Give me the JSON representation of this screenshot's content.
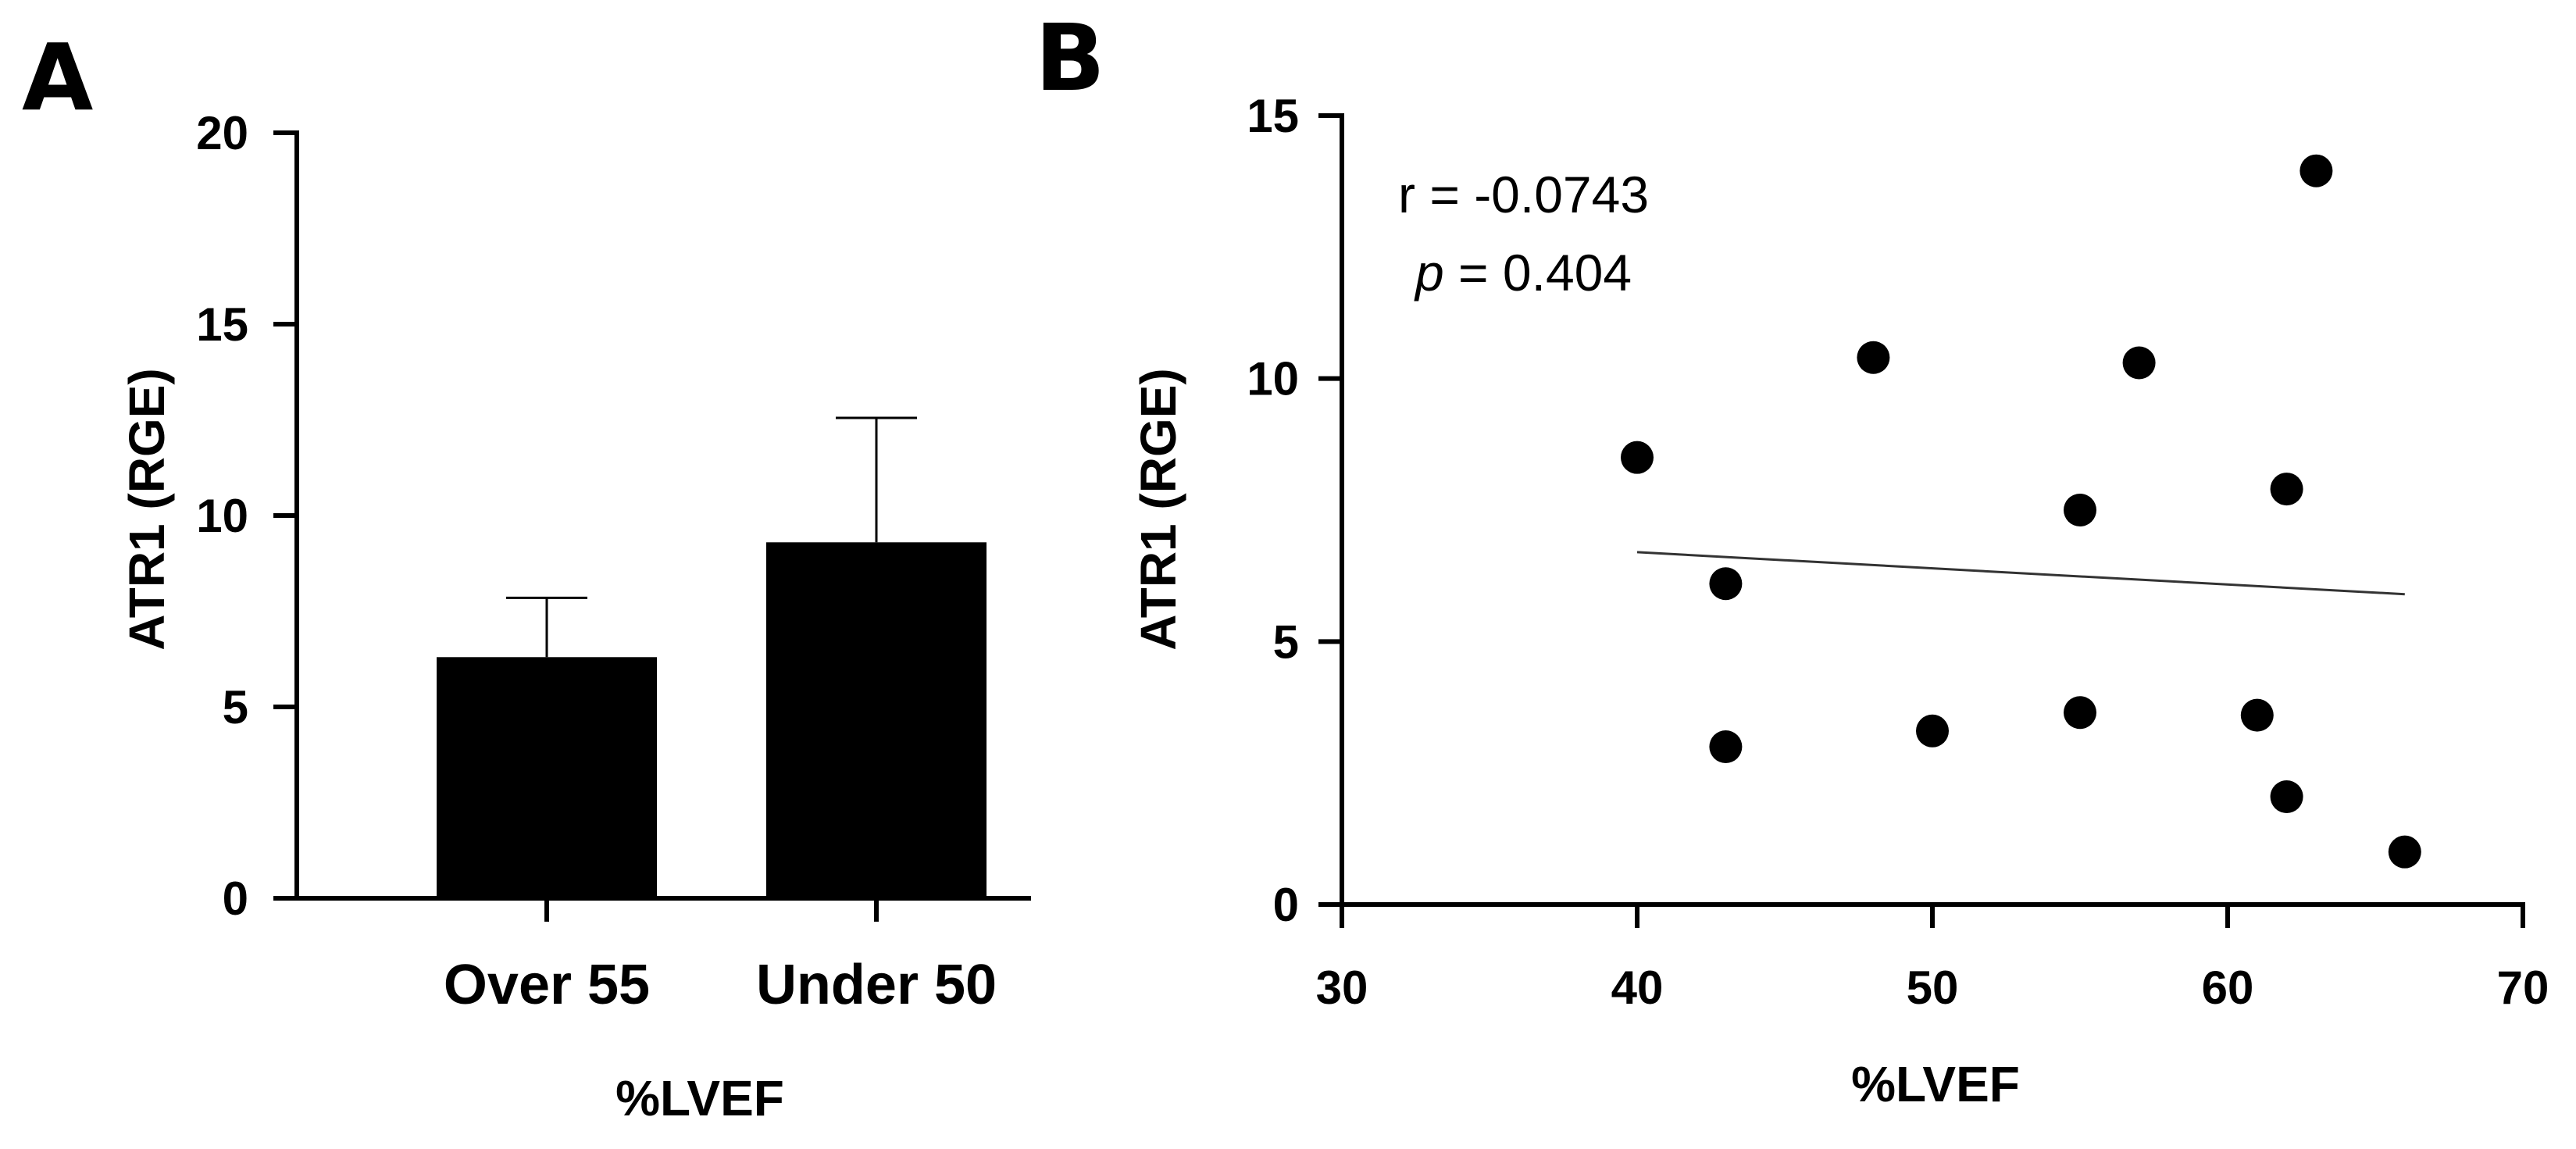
{
  "panels": {
    "a": "A",
    "b": "B"
  },
  "chart_data": [
    {
      "type": "bar",
      "panel": "A",
      "categories": [
        "Over 55",
        "Under 50"
      ],
      "values": [
        6.3,
        9.3
      ],
      "errors_upper": [
        1.55,
        3.25
      ],
      "ylabel": "ATR1 (RGE)",
      "xlabel": "%LVEF",
      "ylim": [
        0,
        20
      ],
      "yticks": [
        0,
        5,
        10,
        15,
        20
      ],
      "color": "#000000"
    },
    {
      "type": "scatter",
      "panel": "B",
      "x": [
        40,
        43,
        43,
        48,
        50,
        55,
        55,
        57,
        61,
        62,
        62,
        63,
        66
      ],
      "y": [
        8.5,
        6.1,
        3.0,
        10.4,
        3.3,
        7.5,
        3.65,
        10.3,
        3.6,
        7.9,
        2.05,
        13.95,
        1.0
      ],
      "fit_line": {
        "x": [
          40,
          66
        ],
        "y": [
          6.7,
          5.9
        ]
      },
      "annotation_r": "r = -0.0743",
      "annotation_p_symbol": "p",
      "annotation_p_value": " = 0.404",
      "ylabel": "ATR1 (RGE)",
      "xlabel": "%LVEF",
      "xlim": [
        30,
        70
      ],
      "ylim": [
        0,
        15
      ],
      "xticks": [
        30,
        40,
        50,
        60,
        70
      ],
      "yticks": [
        0,
        5,
        10,
        15
      ]
    }
  ]
}
